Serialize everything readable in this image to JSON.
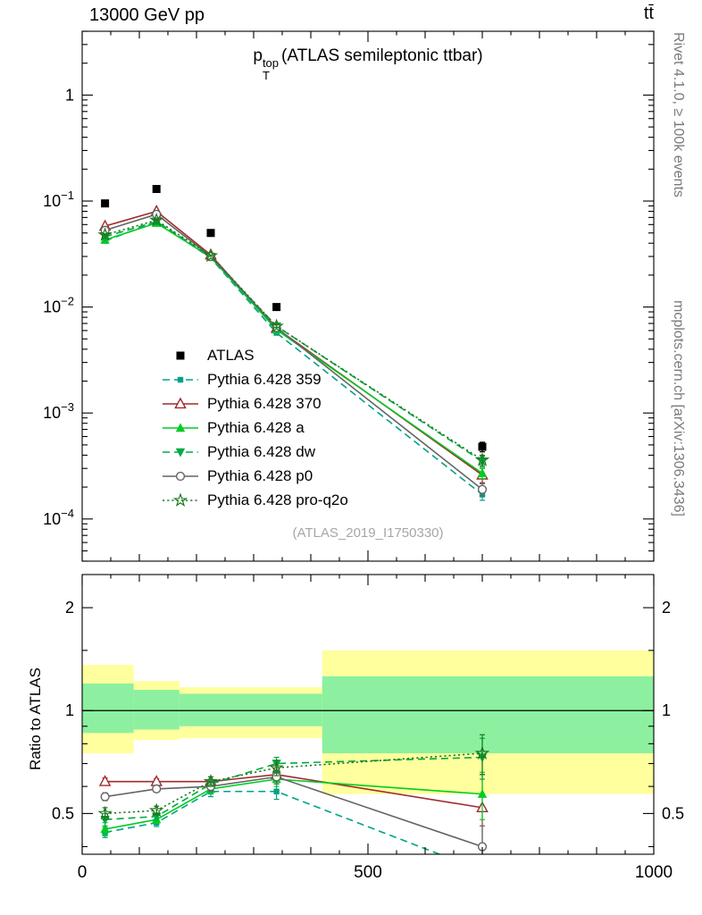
{
  "header": {
    "left": "13000 GeV pp",
    "right": "tt̄"
  },
  "side_notes": {
    "rivet": "Rivet 4.1.0, ≥ 100k events",
    "mcplots": "mcplots.cern.ch [arXiv:1306.3436]"
  },
  "main_title": {
    "symbol": "p",
    "sup": "top",
    "sub": "T",
    "rest": "(ATLAS semileptonic ttbar)"
  },
  "watermark": "(ATLAS_2019_I1750330)",
  "ratio_ylabel": "Ratio to ATLAS",
  "chart_data": {
    "type": "line",
    "title": "pT^top (ATLAS semileptonic ttbar)",
    "x": [
      40,
      130,
      225,
      340,
      700
    ],
    "xlim": [
      0,
      1000
    ],
    "x_ticks": [
      {
        "value": 0,
        "label": "0"
      },
      {
        "value": 500,
        "label": "500"
      },
      {
        "value": 1000,
        "label": "1000"
      }
    ],
    "main_panel": {
      "ylog": true,
      "ylim": [
        4e-05,
        4
      ],
      "y_ticks": [
        {
          "value": 1,
          "base": "1",
          "exp": null
        },
        {
          "value": 0.1,
          "base": "10",
          "exp": "−1"
        },
        {
          "value": 0.01,
          "base": "10",
          "exp": "−2"
        },
        {
          "value": 0.001,
          "base": "10",
          "exp": "−3"
        },
        {
          "value": 0.0001,
          "base": "10",
          "exp": "−4"
        }
      ]
    },
    "ratio_panel": {
      "ylog": true,
      "ylim": [
        0.38,
        2.5
      ],
      "y_ticks": [
        {
          "value": 2,
          "label": "2"
        },
        {
          "value": 1,
          "label": "1"
        },
        {
          "value": 0.5,
          "label": "0.5"
        }
      ],
      "bands": {
        "edges": [
          0,
          90,
          170,
          420,
          1000
        ],
        "yellow_color": "#ffff9e",
        "green_color": "#8cf0a0",
        "yellow": [
          [
            0.75,
            1.36
          ],
          [
            0.82,
            1.22
          ],
          [
            0.83,
            1.17
          ],
          [
            0.57,
            1.5
          ]
        ],
        "green": [
          [
            0.86,
            1.2
          ],
          [
            0.88,
            1.15
          ],
          [
            0.9,
            1.12
          ],
          [
            0.75,
            1.26
          ]
        ]
      }
    },
    "series": [
      {
        "name": "ATLAS",
        "reference": true,
        "color": "#000000",
        "line": "none",
        "marker": "square-filled",
        "values": [
          0.095,
          0.13,
          0.05,
          0.01,
          0.00048
        ],
        "errs": [
          0.004,
          0.005,
          0.002,
          0.0005,
          5e-05
        ],
        "ratio": null,
        "ratio_errs": null
      },
      {
        "name": "Pythia 6.428 359",
        "color": "#00a287",
        "line": "dashed",
        "marker": "square-small-filled",
        "values": [
          0.042,
          0.064,
          0.029,
          0.0057,
          0.00017
        ],
        "errs": [
          0.001,
          0.001,
          0.0005,
          0.0002,
          2e-05
        ],
        "ratio": [
          0.44,
          0.47,
          0.58,
          0.58,
          0.34
        ],
        "ratio_errs": [
          0.015,
          0.012,
          0.02,
          0.03,
          0.06
        ]
      },
      {
        "name": "Pythia 6.428 370",
        "color": "#a02c2c",
        "line": "solid",
        "marker": "triangle-up-open",
        "values": [
          0.058,
          0.08,
          0.031,
          0.0063,
          0.00026
        ],
        "errs": [
          0.001,
          0.001,
          0.0005,
          0.0002,
          4e-05
        ],
        "ratio": [
          0.62,
          0.62,
          0.62,
          0.65,
          0.52
        ],
        "ratio_errs": [
          0.015,
          0.012,
          0.02,
          0.03,
          0.13
        ]
      },
      {
        "name": "Pythia 6.428 a",
        "color": "#00cc22",
        "line": "solid",
        "marker": "triangle-up-filled",
        "values": [
          0.043,
          0.062,
          0.0295,
          0.0061,
          0.00027
        ],
        "errs": [
          0.001,
          0.001,
          0.0005,
          0.0002,
          3e-05
        ],
        "ratio": [
          0.45,
          0.48,
          0.59,
          0.63,
          0.57
        ],
        "ratio_errs": [
          0.02,
          0.012,
          0.02,
          0.03,
          0.09
        ]
      },
      {
        "name": "Pythia 6.428 dw",
        "color": "#00aa44",
        "line": "dashed",
        "marker": "triangle-down-filled",
        "values": [
          0.046,
          0.064,
          0.03,
          0.0066,
          0.00035
        ],
        "errs": [
          0.001,
          0.001,
          0.0005,
          0.0002,
          4e-05
        ],
        "ratio": [
          0.48,
          0.49,
          0.61,
          0.7,
          0.73
        ],
        "ratio_errs": [
          0.02,
          0.012,
          0.02,
          0.03,
          0.1
        ]
      },
      {
        "name": "Pythia 6.428 p0",
        "color": "#646464",
        "line": "solid",
        "marker": "circle-open",
        "values": [
          0.053,
          0.075,
          0.03,
          0.0064,
          0.00019
        ],
        "errs": [
          0.001,
          0.001,
          0.0005,
          0.0002,
          2.5e-05
        ],
        "ratio": [
          0.56,
          0.59,
          0.6,
          0.64,
          0.4
        ],
        "ratio_errs": [
          0.015,
          0.012,
          0.02,
          0.03,
          0.06
        ]
      },
      {
        "name": "Pythia 6.428 pro-q2o",
        "color": "#1d7a1d",
        "line": "dotted",
        "marker": "star-open",
        "values": [
          0.048,
          0.066,
          0.0305,
          0.0066,
          0.00036
        ],
        "errs": [
          0.001,
          0.001,
          0.0005,
          0.0002,
          4e-05
        ],
        "ratio": [
          0.5,
          0.51,
          0.62,
          0.68,
          0.75
        ],
        "ratio_errs": [
          0.02,
          0.015,
          0.02,
          0.035,
          0.1
        ]
      }
    ]
  }
}
